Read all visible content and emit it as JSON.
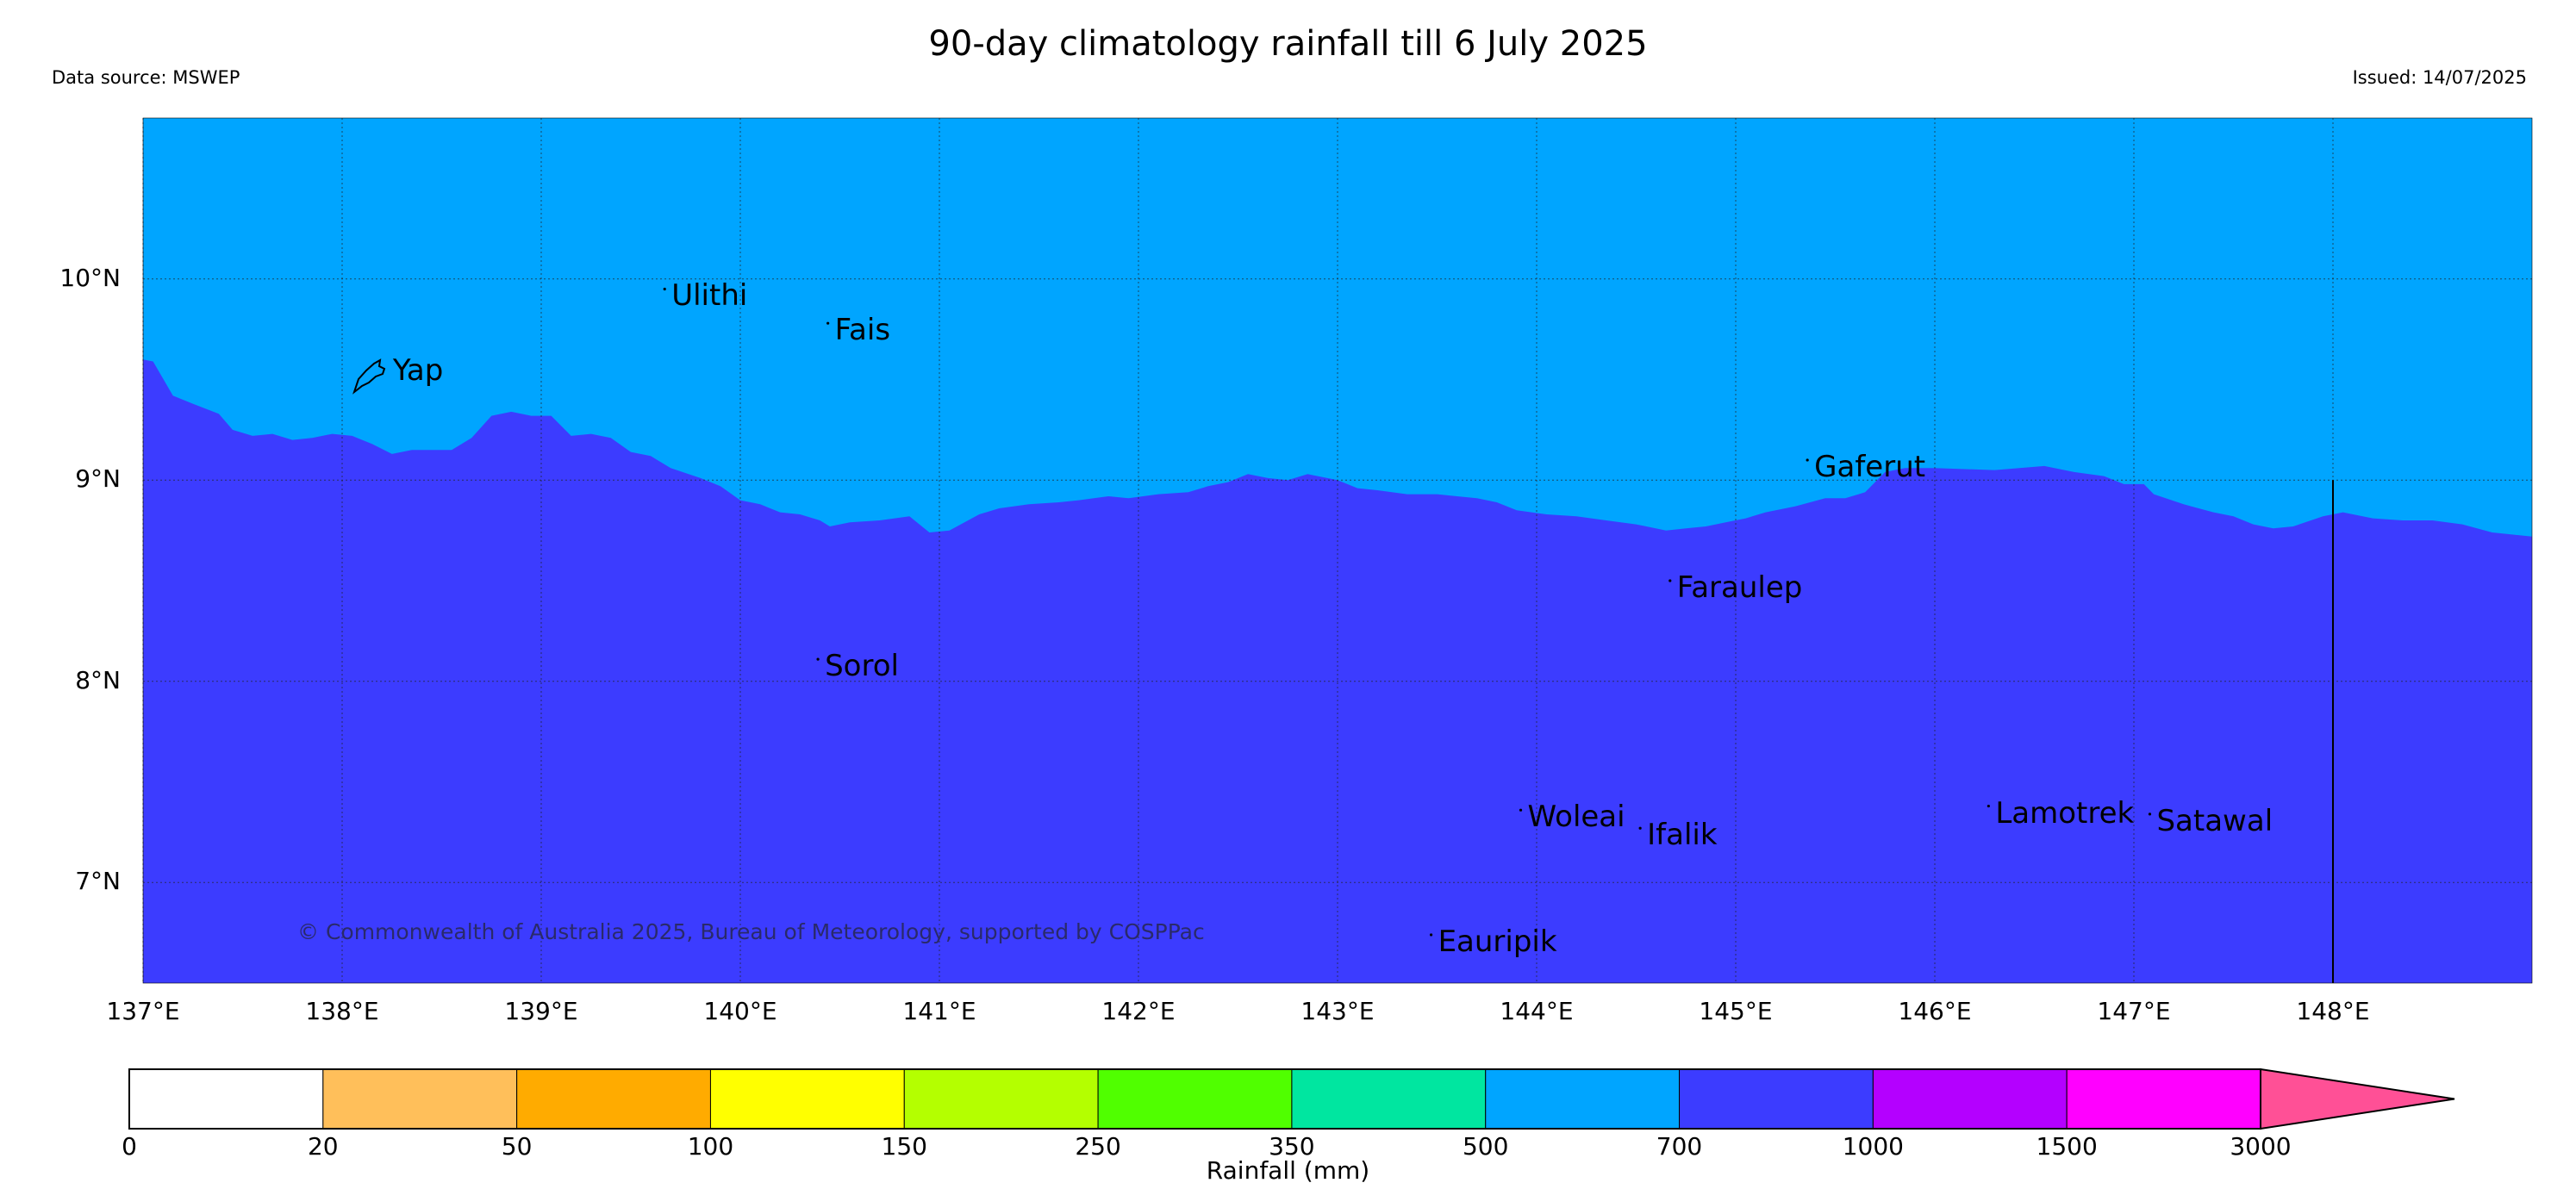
{
  "header": {
    "title": "90-day climatology rainfall till 6 July 2025",
    "data_source": "Data source: MSWEP",
    "issued": "Issued: 14/07/2025"
  },
  "map": {
    "lon_range": [
      137,
      149
    ],
    "lat_range": [
      6.5,
      10.8
    ],
    "grid": true,
    "x_ticks": [
      "137°E",
      "138°E",
      "139°E",
      "140°E",
      "141°E",
      "142°E",
      "143°E",
      "144°E",
      "145°E",
      "146°E",
      "147°E",
      "148°E"
    ],
    "y_ticks": [
      "10°N",
      "9°N",
      "8°N",
      "7°N"
    ],
    "north_fill_color": "#00a5ff",
    "south_fill_color": "#3c3cff",
    "north_fill_class": "500-700 mm",
    "south_fill_class": "700-1000 mm",
    "boundary": [
      [
        137.0,
        9.6
      ],
      [
        137.05,
        9.59
      ],
      [
        137.15,
        9.42
      ],
      [
        137.25,
        9.38
      ],
      [
        137.38,
        9.33
      ],
      [
        137.45,
        9.25
      ],
      [
        137.55,
        9.22
      ],
      [
        137.65,
        9.23
      ],
      [
        137.75,
        9.2
      ],
      [
        137.85,
        9.21
      ],
      [
        137.95,
        9.23
      ],
      [
        138.05,
        9.22
      ],
      [
        138.15,
        9.18
      ],
      [
        138.25,
        9.13
      ],
      [
        138.35,
        9.15
      ],
      [
        138.55,
        9.15
      ],
      [
        138.65,
        9.21
      ],
      [
        138.75,
        9.32
      ],
      [
        138.85,
        9.34
      ],
      [
        138.95,
        9.32
      ],
      [
        139.05,
        9.32
      ],
      [
        139.15,
        9.22
      ],
      [
        139.25,
        9.23
      ],
      [
        139.35,
        9.21
      ],
      [
        139.45,
        9.14
      ],
      [
        139.55,
        9.12
      ],
      [
        139.65,
        9.06
      ],
      [
        139.8,
        9.01
      ],
      [
        139.9,
        8.97
      ],
      [
        140.0,
        8.9
      ],
      [
        140.1,
        8.88
      ],
      [
        140.2,
        8.84
      ],
      [
        140.3,
        8.83
      ],
      [
        140.4,
        8.8
      ],
      [
        140.45,
        8.77
      ],
      [
        140.55,
        8.79
      ],
      [
        140.7,
        8.8
      ],
      [
        140.85,
        8.82
      ],
      [
        140.95,
        8.74
      ],
      [
        141.05,
        8.75
      ],
      [
        141.2,
        8.83
      ],
      [
        141.3,
        8.86
      ],
      [
        141.45,
        8.88
      ],
      [
        141.6,
        8.89
      ],
      [
        141.7,
        8.9
      ],
      [
        141.85,
        8.92
      ],
      [
        141.95,
        8.91
      ],
      [
        142.1,
        8.93
      ],
      [
        142.25,
        8.94
      ],
      [
        142.35,
        8.97
      ],
      [
        142.45,
        8.99
      ],
      [
        142.55,
        9.03
      ],
      [
        142.65,
        9.01
      ],
      [
        142.75,
        9.0
      ],
      [
        142.85,
        9.03
      ],
      [
        143.0,
        9.0
      ],
      [
        143.1,
        8.96
      ],
      [
        143.2,
        8.95
      ],
      [
        143.35,
        8.93
      ],
      [
        143.5,
        8.93
      ],
      [
        143.6,
        8.92
      ],
      [
        143.7,
        8.91
      ],
      [
        143.8,
        8.89
      ],
      [
        143.9,
        8.85
      ],
      [
        144.05,
        8.83
      ],
      [
        144.2,
        8.82
      ],
      [
        144.35,
        8.8
      ],
      [
        144.5,
        8.78
      ],
      [
        144.65,
        8.75
      ],
      [
        144.75,
        8.76
      ],
      [
        144.85,
        8.77
      ],
      [
        144.95,
        8.79
      ],
      [
        145.05,
        8.81
      ],
      [
        145.15,
        8.84
      ],
      [
        145.3,
        8.87
      ],
      [
        145.45,
        8.91
      ],
      [
        145.55,
        8.91
      ],
      [
        145.65,
        8.94
      ],
      [
        145.75,
        9.04
      ],
      [
        145.85,
        9.06
      ],
      [
        146.0,
        9.06
      ],
      [
        146.3,
        9.05
      ],
      [
        146.55,
        9.07
      ],
      [
        146.7,
        9.04
      ],
      [
        146.85,
        9.02
      ],
      [
        146.95,
        8.98
      ],
      [
        147.05,
        8.98
      ],
      [
        147.1,
        8.93
      ],
      [
        147.25,
        8.88
      ],
      [
        147.4,
        8.84
      ],
      [
        147.5,
        8.82
      ],
      [
        147.6,
        8.78
      ],
      [
        147.7,
        8.76
      ],
      [
        147.8,
        8.77
      ],
      [
        147.95,
        8.82
      ],
      [
        148.05,
        8.84
      ],
      [
        148.2,
        8.81
      ],
      [
        148.35,
        8.8
      ],
      [
        148.5,
        8.8
      ],
      [
        148.65,
        8.78
      ],
      [
        148.8,
        8.74
      ],
      [
        149.0,
        8.72
      ]
    ],
    "vertical_line_lon": 148.0,
    "vertical_line_lat_range": [
      6.5,
      9.0
    ],
    "places": [
      {
        "name": "Yap",
        "lon": 138.22,
        "lat": 9.52
      },
      {
        "name": "Ulithi",
        "lon": 139.62,
        "lat": 9.89
      },
      {
        "name": "Fais",
        "lon": 140.44,
        "lat": 9.72
      },
      {
        "name": "Gaferut",
        "lon": 145.36,
        "lat": 9.04
      },
      {
        "name": "Faraulep",
        "lon": 144.67,
        "lat": 8.44
      },
      {
        "name": "Sorol",
        "lon": 140.39,
        "lat": 8.05
      },
      {
        "name": "Woleai",
        "lon": 143.92,
        "lat": 7.3
      },
      {
        "name": "Ifalik",
        "lon": 144.52,
        "lat": 7.21
      },
      {
        "name": "Lamotrek",
        "lon": 146.27,
        "lat": 7.32
      },
      {
        "name": "Satawal",
        "lon": 147.08,
        "lat": 7.28
      },
      {
        "name": "Eauripik",
        "lon": 143.47,
        "lat": 6.68
      }
    ],
    "copyright": "© Commonwealth of Australia 2025, Bureau of Meteorology, supported by COSPPac"
  },
  "colorbar": {
    "label": "Rainfall (mm)",
    "ticks": [
      "0",
      "20",
      "50",
      "100",
      "150",
      "250",
      "350",
      "500",
      "700",
      "1000",
      "1500",
      "3000"
    ],
    "colors": [
      "#ffffff",
      "#ffbf5a",
      "#ffab00",
      "#ffff00",
      "#b4ff00",
      "#50ff00",
      "#00e6a0",
      "#00a5ff",
      "#3c3cff",
      "#b400ff",
      "#ff00ff"
    ],
    "extend_color": "#ff5096"
  }
}
